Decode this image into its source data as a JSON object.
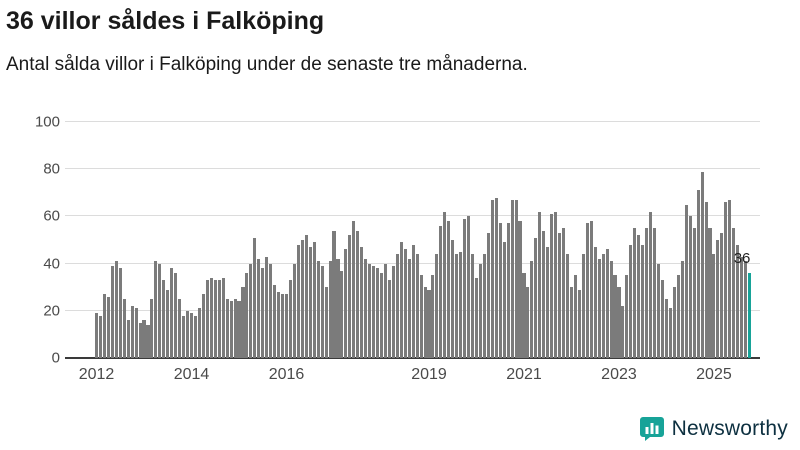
{
  "header": {
    "title": "36 villor såldes i Falköping",
    "subtitle": "Antal sålda villor i Falköping under de senaste tre månaderna."
  },
  "chart_data": {
    "type": "bar",
    "title": "36 villor såldes i Falköping",
    "subtitle": "Antal sålda villor i Falköping under de senaste tre månaderna.",
    "xlabel": "",
    "ylabel": "",
    "ylim": [
      0,
      100
    ],
    "y_ticks": [
      0,
      20,
      40,
      60,
      80,
      100
    ],
    "grid": "horizontal",
    "x_start_month": "2012-01",
    "x_ticks": [
      {
        "label": "2012",
        "index": 0
      },
      {
        "label": "2014",
        "index": 24
      },
      {
        "label": "2016",
        "index": 48
      },
      {
        "label": "2019",
        "index": 84
      },
      {
        "label": "2021",
        "index": 108
      },
      {
        "label": "2023",
        "index": 132
      },
      {
        "label": "2025",
        "index": 156
      }
    ],
    "values": [
      19,
      18,
      27,
      26,
      39,
      41,
      38,
      25,
      16,
      22,
      21,
      15,
      16,
      14,
      25,
      41,
      40,
      33,
      29,
      38,
      36,
      25,
      18,
      20,
      19,
      18,
      21,
      27,
      33,
      34,
      33,
      33,
      34,
      25,
      24,
      25,
      24,
      30,
      36,
      40,
      51,
      42,
      38,
      43,
      40,
      31,
      28,
      27,
      27,
      33,
      40,
      48,
      50,
      52,
      47,
      49,
      41,
      39,
      30,
      41,
      54,
      42,
      37,
      46,
      52,
      58,
      54,
      47,
      42,
      40,
      39,
      38,
      36,
      40,
      33,
      39,
      44,
      49,
      46,
      42,
      48,
      44,
      35,
      30,
      29,
      35,
      44,
      56,
      62,
      58,
      50,
      44,
      45,
      59,
      60,
      44,
      34,
      40,
      44,
      53,
      67,
      68,
      57,
      49,
      57,
      67,
      67,
      58,
      36,
      30,
      41,
      51,
      62,
      54,
      47,
      61,
      62,
      53,
      55,
      44,
      30,
      35,
      29,
      44,
      57,
      58,
      47,
      42,
      44,
      46,
      41,
      35,
      30,
      22,
      35,
      48,
      55,
      52,
      48,
      55,
      62,
      55,
      40,
      33,
      25,
      21,
      30,
      35,
      41,
      65,
      60,
      55,
      71,
      79,
      66,
      55,
      44,
      50,
      53,
      66,
      67,
      55,
      48,
      43,
      41,
      36
    ],
    "bar_color": "#7b7b7b",
    "highlight_color": "#17a398",
    "highlight_index": 165,
    "annotation": {
      "text": "36",
      "index": 165,
      "value": 36
    }
  },
  "branding": {
    "name": "Newsworthy",
    "icon": "bar-chart-bubble-icon",
    "icon_color": "#17a398",
    "text_color": "#0d3040"
  }
}
